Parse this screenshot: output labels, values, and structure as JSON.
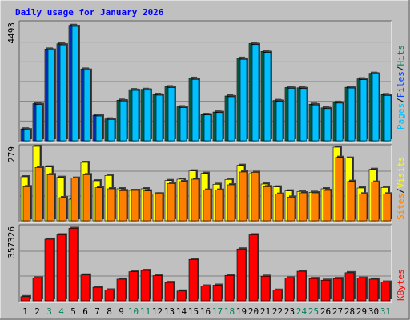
{
  "window": {
    "title": "Daily usage for January 2026"
  },
  "colors": {
    "background": "#c0c0c0",
    "panel": "#c0c0c0",
    "grid": "#808080",
    "title": "#0000ff",
    "hits": "#00805c",
    "files": "#0040ff",
    "pages": "#00c0ff",
    "sites": "#ff8000",
    "visits": "#ffff00",
    "kbytes": "#ff0000",
    "weekend_label": "#00805c",
    "weekday_label": "#000000"
  },
  "chart_data": [
    {
      "type": "bar",
      "title": "Daily usage for January 2026",
      "categories": [
        "1",
        "2",
        "3",
        "4",
        "5",
        "6",
        "7",
        "8",
        "9",
        "10",
        "11",
        "12",
        "13",
        "14",
        "15",
        "16",
        "17",
        "18",
        "19",
        "20",
        "21",
        "22",
        "23",
        "24",
        "25",
        "26",
        "27",
        "28",
        "29",
        "30",
        "31"
      ],
      "weekend_days": [
        "3",
        "4",
        "10",
        "11",
        "17",
        "18",
        "24",
        "25",
        "31"
      ],
      "ymax_label": "4493",
      "ylim": [
        0,
        4493
      ],
      "legend": [
        "Hits",
        "Files",
        "Pages"
      ],
      "series": [
        {
          "name": "Hits",
          "color": "#00805c",
          "values": [
            450,
            1410,
            3480,
            3680,
            4380,
            2720,
            970,
            830,
            1540,
            1940,
            1950,
            1760,
            2050,
            1290,
            2370,
            1000,
            1090,
            1700,
            3130,
            3690,
            3390,
            1530,
            2020,
            2010,
            1390,
            1250,
            1460,
            2030,
            2350,
            2560,
            1750
          ]
        },
        {
          "name": "Files",
          "color": "#0040ff",
          "values": [
            430,
            1390,
            3450,
            3650,
            4350,
            2690,
            950,
            820,
            1520,
            1920,
            1930,
            1740,
            2030,
            1270,
            2340,
            990,
            1080,
            1680,
            3100,
            3660,
            3360,
            1510,
            2000,
            1990,
            1370,
            1230,
            1440,
            2010,
            2330,
            2540,
            1730
          ]
        },
        {
          "name": "Pages",
          "color": "#00c0ff",
          "values": [
            420,
            1380,
            3440,
            3640,
            4340,
            2680,
            940,
            810,
            1510,
            1910,
            1920,
            1730,
            2020,
            1260,
            2330,
            980,
            1070,
            1670,
            3090,
            3650,
            3350,
            1500,
            1990,
            1980,
            1360,
            1220,
            1430,
            2000,
            2320,
            2530,
            1720
          ]
        }
      ]
    },
    {
      "type": "bar",
      "categories": [
        "1",
        "2",
        "3",
        "4",
        "5",
        "6",
        "7",
        "8",
        "9",
        "10",
        "11",
        "12",
        "13",
        "14",
        "15",
        "16",
        "17",
        "18",
        "19",
        "20",
        "21",
        "22",
        "23",
        "24",
        "25",
        "26",
        "27",
        "28",
        "29",
        "30",
        "31"
      ],
      "ymax_label": "279",
      "ylim": [
        0,
        279
      ],
      "legend": [
        "Visits",
        "Sites"
      ],
      "series": [
        {
          "name": "Visits",
          "color": "#ffff00",
          "values": [
            165,
            279,
            202,
            163,
            81,
            219,
            150,
            170,
            120,
            114,
            120,
            101,
            151,
            156,
            187,
            178,
            137,
            155,
            208,
            177,
            138,
            127,
            112,
            110,
            107,
            120,
            276,
            235,
            123,
            193,
            125
          ]
        },
        {
          "name": "Sites",
          "color": "#ff8000",
          "values": [
            128,
            200,
            173,
            87,
            160,
            173,
            124,
            120,
            113,
            114,
            112,
            101,
            140,
            147,
            156,
            115,
            115,
            135,
            183,
            182,
            128,
            100,
            89,
            105,
            105,
            114,
            238,
            148,
            101,
            145,
            101
          ]
        }
      ]
    },
    {
      "type": "bar",
      "categories": [
        "1",
        "2",
        "3",
        "4",
        "5",
        "6",
        "7",
        "8",
        "9",
        "10",
        "11",
        "12",
        "13",
        "14",
        "15",
        "16",
        "17",
        "18",
        "19",
        "20",
        "21",
        "22",
        "23",
        "24",
        "25",
        "26",
        "27",
        "28",
        "29",
        "30",
        "31"
      ],
      "ymax_label": "357326",
      "ylim": [
        0,
        357326
      ],
      "legend": [
        "KBytes"
      ],
      "series": [
        {
          "name": "KBytes",
          "color": "#ff0000",
          "values": [
            20000,
            110000,
            296000,
            317000,
            348000,
            124000,
            65000,
            52000,
            104000,
            140000,
            146000,
            121000,
            88000,
            47000,
            199000,
            71000,
            75000,
            122000,
            249000,
            317000,
            118000,
            51000,
            110000,
            142000,
            107000,
            99000,
            107000,
            135000,
            109000,
            104000,
            90000
          ]
        }
      ]
    }
  ]
}
